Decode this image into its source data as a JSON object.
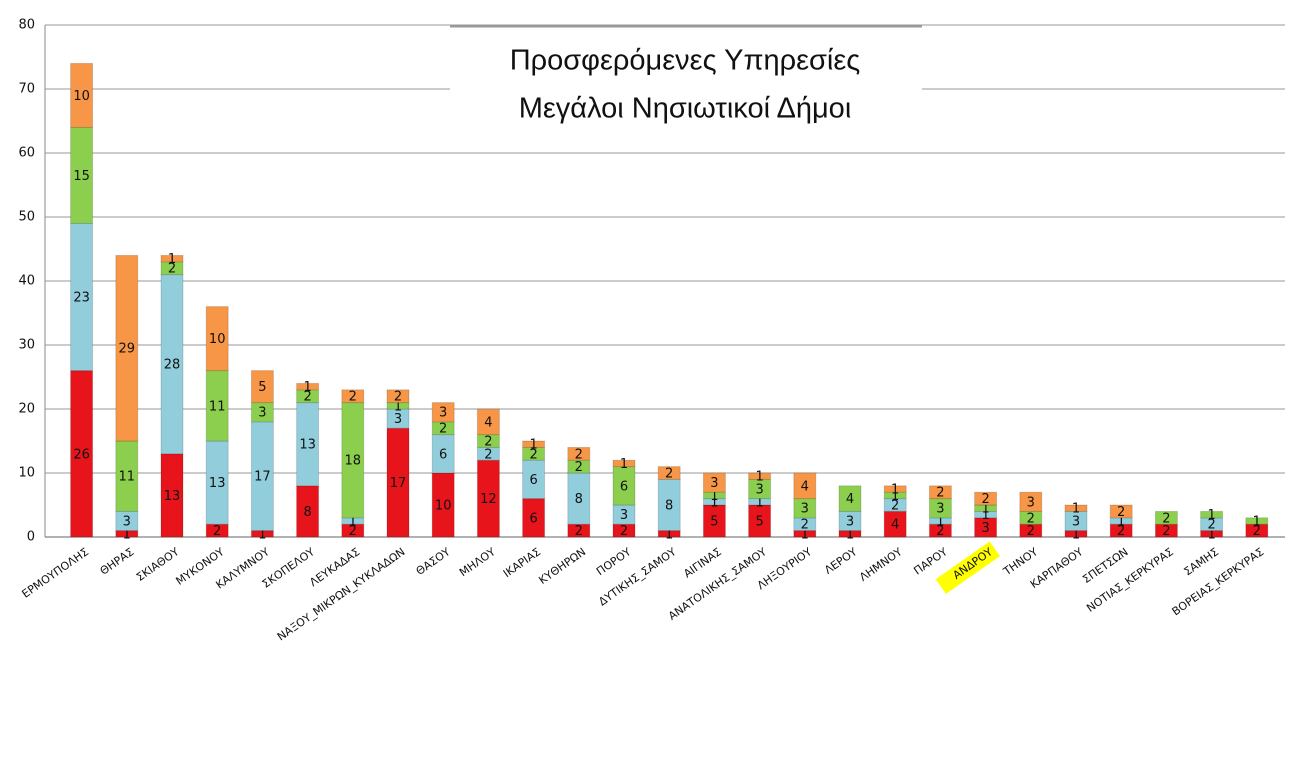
{
  "chart_data": {
    "type": "stacked_bar",
    "title": [
      "Προσφερόμενες Υπηρεσίες",
      "Μεγάλοι Νησιωτικοί Δήμοι"
    ],
    "categories": [
      "ΕΡΜΟΥΠΟΛΗΣ",
      "ΘΗΡΑΣ",
      "ΣΚΙΑΘΟΥ",
      "ΜΥΚΟΝΟΥ",
      "ΚΑΛΥΜΝΟΥ",
      "ΣΚΟΠΕΛΟΥ",
      "ΛΕΥΚΑΔΑΣ",
      "ΝΑΞΟΥ_ΜΙΚΡΩΝ_ΚΥΚΛΑΔΩΝ",
      "ΘΑΣΟΥ",
      "ΜΗΛΟΥ",
      "ΙΚΑΡΙΑΣ",
      "ΚΥΘΗΡΩΝ",
      "ΠΟΡΟΥ",
      "ΔΥΤΙΚΗΣ_ΣΑΜΟΥ",
      "ΑΙΓΙΝΑΣ",
      "ΑΝΑΤΟΛΙΚΗΣ_ΣΑΜΟΥ",
      "ΛΗΞΟΥΡΙΟΥ",
      "ΛΕΡΟΥ",
      "ΛΗΜΝΟΥ",
      "ΠΑΡΟΥ",
      "ΑΝΔΡΟΥ",
      "ΤΗΝΟΥ",
      "ΚΑΡΠΑΘΟΥ",
      "ΣΠΕΤΣΩΝ",
      "ΝΟΤΙΑΣ_ΚΕΡΚΥΡΑΣ",
      "ΣΑΜΗΣ",
      "ΒΟΡΕΙΑΣ_ΚΕΡΚΥΡΑΣ"
    ],
    "series": [
      {
        "color": "#e8141b",
        "values": [
          26,
          1,
          13,
          2,
          1,
          8,
          2,
          17,
          10,
          12,
          6,
          2,
          2,
          1,
          5,
          5,
          1,
          1,
          4,
          2,
          3,
          2,
          1,
          2,
          2,
          1,
          2
        ]
      },
      {
        "color": "#92cddc",
        "values": [
          23,
          3,
          28,
          13,
          17,
          13,
          1,
          3,
          6,
          2,
          6,
          8,
          3,
          8,
          1,
          1,
          2,
          3,
          2,
          1,
          1,
          null,
          3,
          1,
          null,
          2,
          null
        ]
      },
      {
        "color": "#8ccf4e",
        "values": [
          15,
          11,
          2,
          11,
          3,
          2,
          18,
          1,
          2,
          2,
          2,
          2,
          6,
          null,
          1,
          3,
          3,
          4,
          1,
          3,
          1,
          2,
          null,
          null,
          2,
          1,
          1
        ]
      },
      {
        "color": "#f79646",
        "values": [
          10,
          29,
          1,
          10,
          5,
          1,
          2,
          2,
          3,
          4,
          1,
          2,
          1,
          2,
          3,
          1,
          4,
          null,
          1,
          2,
          2,
          3,
          1,
          2,
          null,
          null,
          null
        ]
      }
    ],
    "ylim": [
      0,
      80
    ],
    "yticks": [
      0,
      10,
      20,
      30,
      40,
      50,
      60,
      70,
      80
    ],
    "grid": true,
    "highlight": {
      "index": 20,
      "color": "#ffff00"
    }
  }
}
